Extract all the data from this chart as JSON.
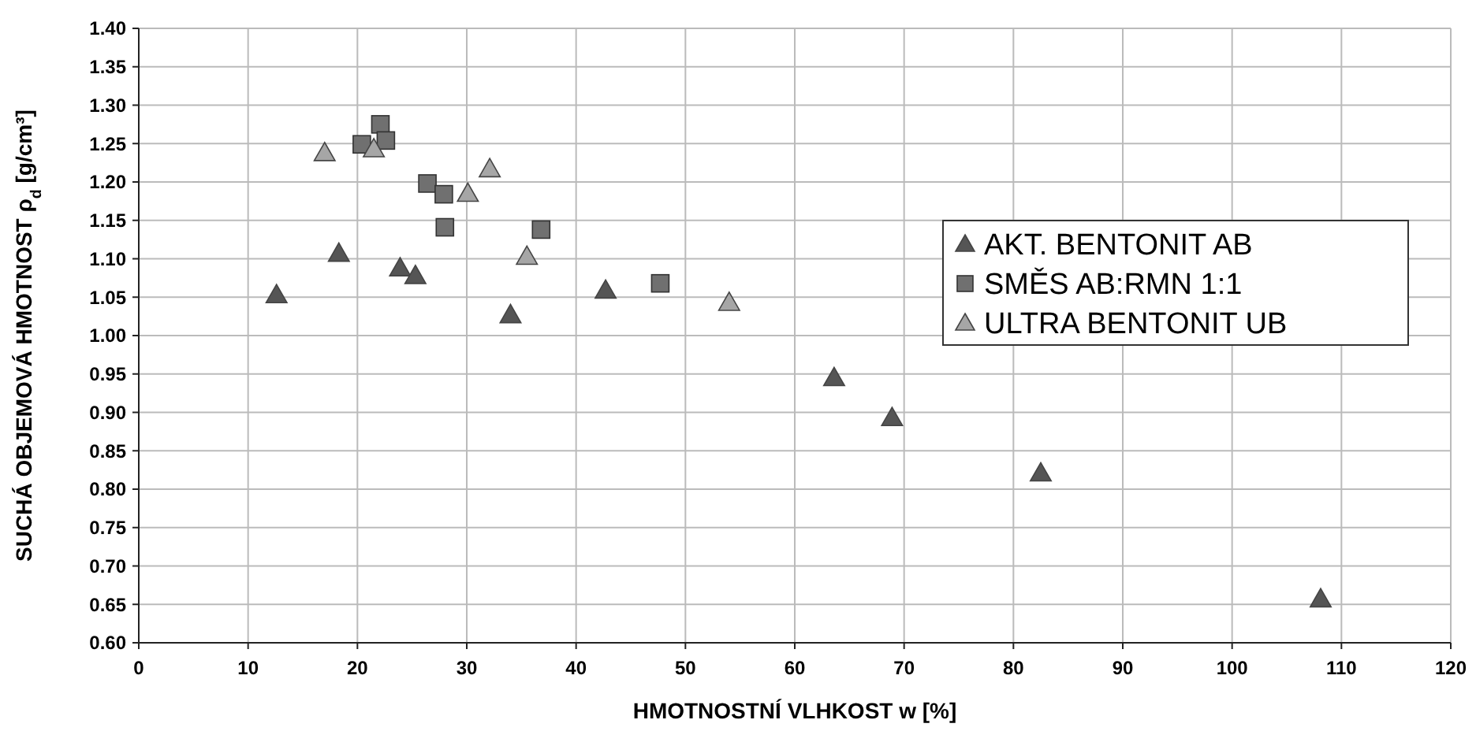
{
  "chart_data": {
    "type": "scatter",
    "xlabel": "HMOTNOSTNÍ VLHKOST  w [%]",
    "ylabel": "SUCHÁ OBJEMOVÁ HMOTNOST  ρ$_{d}$ [g/cm³]",
    "xlim": [
      0,
      120
    ],
    "xticks": [
      0,
      10,
      20,
      30,
      40,
      50,
      60,
      70,
      80,
      90,
      100,
      110,
      120
    ],
    "ylim": [
      0.6,
      1.4
    ],
    "yticks": [
      {
        "value": 0.6,
        "label": "0.60"
      },
      {
        "value": 0.65,
        "label": "0.65"
      },
      {
        "value": 0.7,
        "label": "0.70"
      },
      {
        "value": 0.75,
        "label": "0.75"
      },
      {
        "value": 0.8,
        "label": "0.80"
      },
      {
        "value": 0.85,
        "label": "0.85"
      },
      {
        "value": 0.9,
        "label": "0.90"
      },
      {
        "value": 0.95,
        "label": "0.95"
      },
      {
        "value": 1.0,
        "label": "1.00"
      },
      {
        "value": 1.05,
        "label": "1.05"
      },
      {
        "value": 1.1,
        "label": "1.10"
      },
      {
        "value": 1.15,
        "label": "1.15"
      },
      {
        "value": 1.2,
        "label": "1.20"
      },
      {
        "value": 1.25,
        "label": "1.25"
      },
      {
        "value": 1.3,
        "label": "1.30"
      },
      {
        "value": 1.35,
        "label": "1.35"
      },
      {
        "value": 1.4,
        "label": "1.40"
      }
    ],
    "grid": true,
    "legend": "right",
    "series": [
      {
        "name": "AKT. BENTONIT AB",
        "color": "#555555",
        "marker": "triangle",
        "x": [
          12.6,
          18.3,
          23.9,
          25.3,
          34.0,
          42.7,
          63.6,
          68.9,
          82.5,
          108.1
        ],
        "values": [
          1.053,
          1.107,
          1.088,
          1.078,
          1.027,
          1.059,
          0.945,
          0.893,
          0.821,
          0.657
        ]
      },
      {
        "name": "SMĚS AB:RMN 1:1",
        "color": "#707070",
        "marker": "square",
        "x": [
          20.4,
          22.1,
          22.6,
          26.4,
          27.9,
          28.0,
          36.8,
          47.7
        ],
        "values": [
          1.249,
          1.275,
          1.254,
          1.198,
          1.184,
          1.141,
          1.138,
          1.068
        ]
      },
      {
        "name": "ULTRA BENTONIT UB",
        "color": "#a6a6a6",
        "marker": "triangle",
        "x": [
          17.0,
          21.5,
          32.1,
          30.1,
          35.5,
          54.0
        ],
        "values": [
          1.238,
          1.243,
          1.217,
          1.185,
          1.103,
          1.043
        ]
      }
    ]
  }
}
